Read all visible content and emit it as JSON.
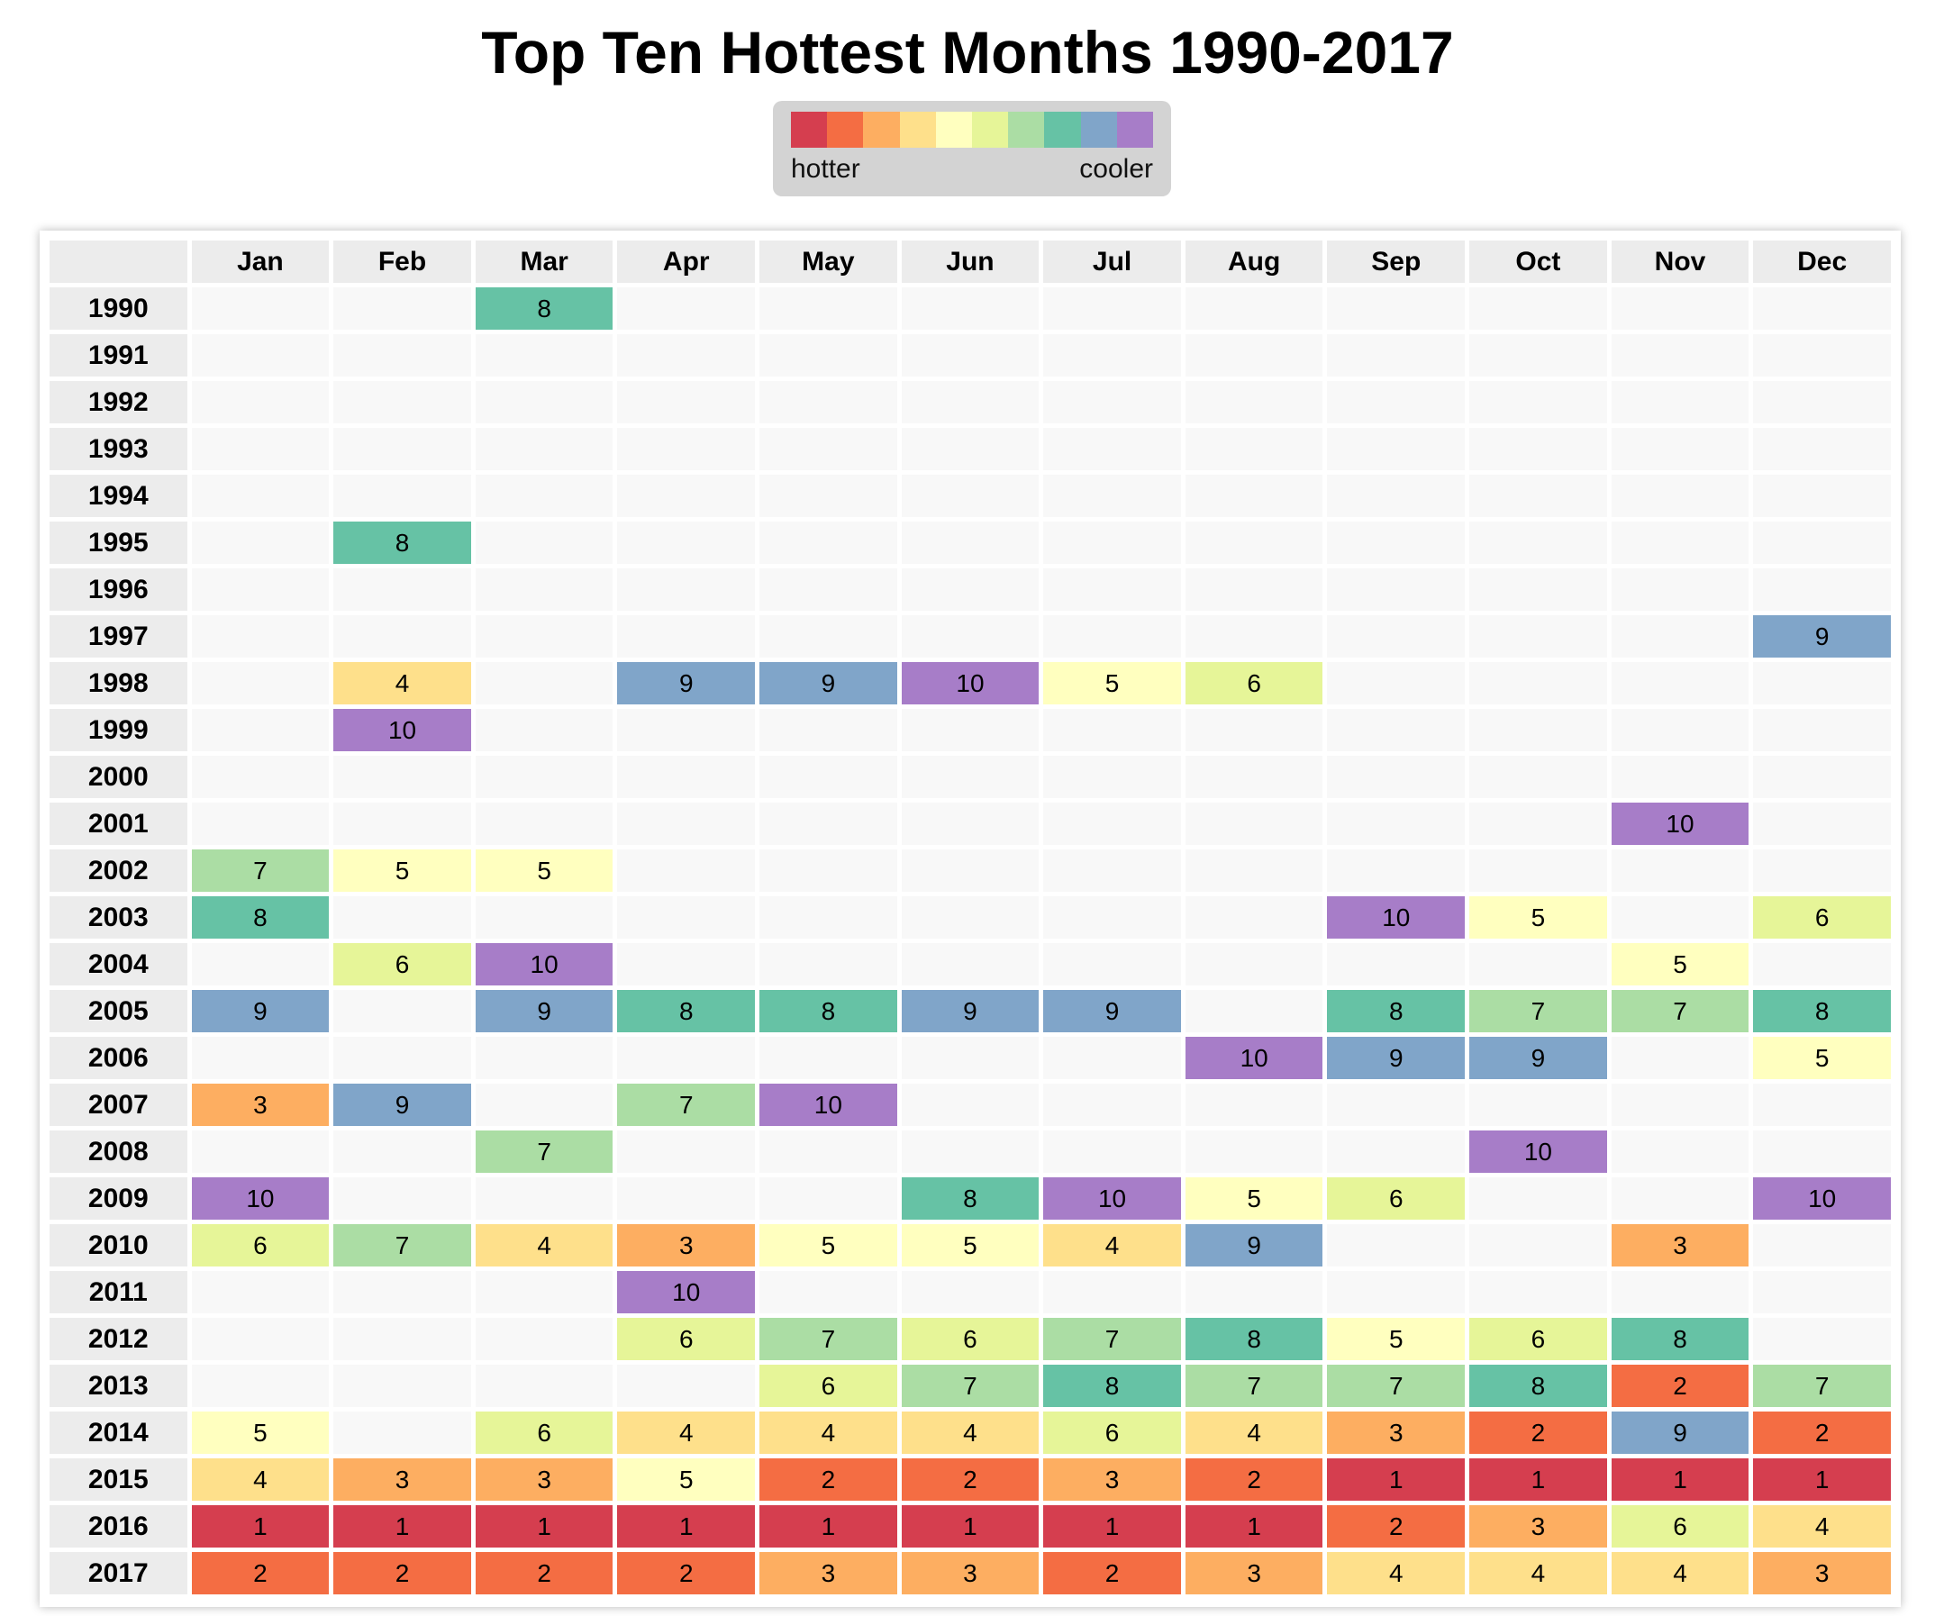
{
  "chart_data": {
    "type": "heatmap",
    "title": "Top Ten Hottest Months 1990-2017",
    "legend": {
      "placement": "top-center",
      "low_label": "hotter",
      "high_label": "cooler"
    },
    "colors": [
      "#d53e4f",
      "#f46d43",
      "#fdae61",
      "#fee08b",
      "#ffffbf",
      "#e6f598",
      "#abdda4",
      "#66c2a5",
      "#80a5c9",
      "#a77dc8"
    ],
    "empty_color": "#f8f8f8",
    "columns": [
      "Jan",
      "Feb",
      "Mar",
      "Apr",
      "May",
      "Jun",
      "Jul",
      "Aug",
      "Sep",
      "Oct",
      "Nov",
      "Dec"
    ],
    "rows": [
      {
        "year": "1990",
        "ranks": [
          null,
          null,
          8,
          null,
          null,
          null,
          null,
          null,
          null,
          null,
          null,
          null
        ]
      },
      {
        "year": "1991",
        "ranks": [
          null,
          null,
          null,
          null,
          null,
          null,
          null,
          null,
          null,
          null,
          null,
          null
        ]
      },
      {
        "year": "1992",
        "ranks": [
          null,
          null,
          null,
          null,
          null,
          null,
          null,
          null,
          null,
          null,
          null,
          null
        ]
      },
      {
        "year": "1993",
        "ranks": [
          null,
          null,
          null,
          null,
          null,
          null,
          null,
          null,
          null,
          null,
          null,
          null
        ]
      },
      {
        "year": "1994",
        "ranks": [
          null,
          null,
          null,
          null,
          null,
          null,
          null,
          null,
          null,
          null,
          null,
          null
        ]
      },
      {
        "year": "1995",
        "ranks": [
          null,
          8,
          null,
          null,
          null,
          null,
          null,
          null,
          null,
          null,
          null,
          null
        ]
      },
      {
        "year": "1996",
        "ranks": [
          null,
          null,
          null,
          null,
          null,
          null,
          null,
          null,
          null,
          null,
          null,
          null
        ]
      },
      {
        "year": "1997",
        "ranks": [
          null,
          null,
          null,
          null,
          null,
          null,
          null,
          null,
          null,
          null,
          null,
          9
        ]
      },
      {
        "year": "1998",
        "ranks": [
          null,
          4,
          null,
          9,
          9,
          10,
          5,
          6,
          null,
          null,
          null,
          null
        ]
      },
      {
        "year": "1999",
        "ranks": [
          null,
          10,
          null,
          null,
          null,
          null,
          null,
          null,
          null,
          null,
          null,
          null
        ]
      },
      {
        "year": "2000",
        "ranks": [
          null,
          null,
          null,
          null,
          null,
          null,
          null,
          null,
          null,
          null,
          null,
          null
        ]
      },
      {
        "year": "2001",
        "ranks": [
          null,
          null,
          null,
          null,
          null,
          null,
          null,
          null,
          null,
          null,
          10,
          null
        ]
      },
      {
        "year": "2002",
        "ranks": [
          7,
          5,
          5,
          null,
          null,
          null,
          null,
          null,
          null,
          null,
          null,
          null
        ]
      },
      {
        "year": "2003",
        "ranks": [
          8,
          null,
          null,
          null,
          null,
          null,
          null,
          null,
          10,
          5,
          null,
          6
        ]
      },
      {
        "year": "2004",
        "ranks": [
          null,
          6,
          10,
          null,
          null,
          null,
          null,
          null,
          null,
          null,
          5,
          null
        ]
      },
      {
        "year": "2005",
        "ranks": [
          9,
          null,
          9,
          8,
          8,
          9,
          9,
          null,
          8,
          7,
          7,
          8
        ]
      },
      {
        "year": "2006",
        "ranks": [
          null,
          null,
          null,
          null,
          null,
          null,
          null,
          10,
          9,
          9,
          null,
          5
        ]
      },
      {
        "year": "2007",
        "ranks": [
          3,
          9,
          null,
          7,
          10,
          null,
          null,
          null,
          null,
          null,
          null,
          null
        ]
      },
      {
        "year": "2008",
        "ranks": [
          null,
          null,
          7,
          null,
          null,
          null,
          null,
          null,
          null,
          10,
          null,
          null
        ]
      },
      {
        "year": "2009",
        "ranks": [
          10,
          null,
          null,
          null,
          null,
          8,
          10,
          5,
          6,
          null,
          null,
          10
        ]
      },
      {
        "year": "2010",
        "ranks": [
          6,
          7,
          4,
          3,
          5,
          5,
          4,
          9,
          null,
          null,
          3,
          null
        ]
      },
      {
        "year": "2011",
        "ranks": [
          null,
          null,
          null,
          10,
          null,
          null,
          null,
          null,
          null,
          null,
          null,
          null
        ]
      },
      {
        "year": "2012",
        "ranks": [
          null,
          null,
          null,
          6,
          7,
          6,
          7,
          8,
          5,
          6,
          8,
          null
        ]
      },
      {
        "year": "2013",
        "ranks": [
          null,
          null,
          null,
          null,
          6,
          7,
          8,
          7,
          7,
          8,
          2,
          7
        ]
      },
      {
        "year": "2014",
        "ranks": [
          5,
          null,
          6,
          4,
          4,
          4,
          6,
          4,
          3,
          2,
          9,
          2
        ]
      },
      {
        "year": "2015",
        "ranks": [
          4,
          3,
          3,
          5,
          2,
          2,
          3,
          2,
          1,
          1,
          1,
          1
        ]
      },
      {
        "year": "2016",
        "ranks": [
          1,
          1,
          1,
          1,
          1,
          1,
          1,
          1,
          2,
          3,
          6,
          4
        ]
      },
      {
        "year": "2017",
        "ranks": [
          2,
          2,
          2,
          2,
          3,
          3,
          2,
          3,
          4,
          4,
          4,
          3
        ]
      }
    ]
  }
}
